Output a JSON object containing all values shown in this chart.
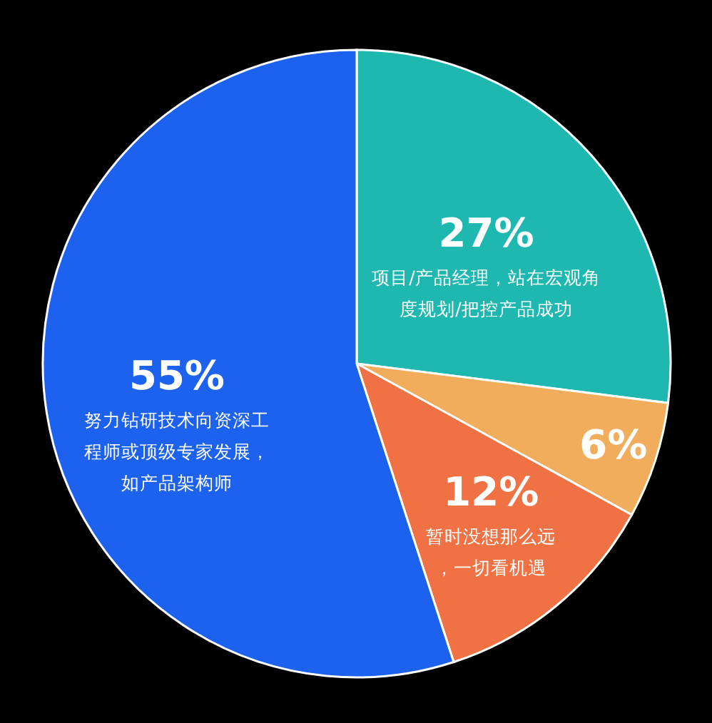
{
  "chart_data": {
    "type": "pie",
    "categories": [
      "项目/产品经理，站在宏观角度规划/把控产品成功",
      null,
      "暂时没想那么远，一切看机遇",
      "努力钻研技术向资深工程师或顶级专家发展，如产品架构师"
    ],
    "values": [
      27,
      6,
      12,
      55
    ],
    "colors": [
      "#1fb8b0",
      "#f2ad5c",
      "#f07244",
      "#1c62ee"
    ],
    "value_labels": [
      "27%",
      "6%",
      "12%",
      "55%"
    ],
    "legend": false
  }
}
